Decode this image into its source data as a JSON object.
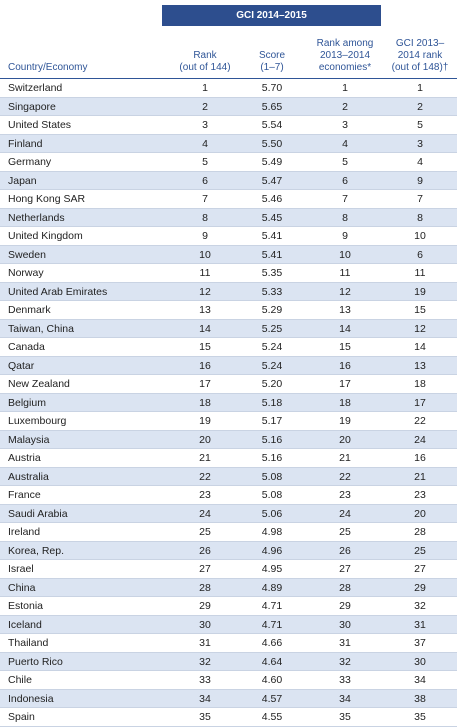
{
  "table": {
    "group_header": "GCI 2014–2015",
    "columns": [
      [
        "Country/Economy"
      ],
      [
        "Rank",
        "(out of 144)"
      ],
      [
        "Score",
        "(1–7)"
      ],
      [
        "Rank among",
        "2013–2014",
        "economies*"
      ],
      [
        "GCI 2013–",
        "2014 rank",
        "(out of 148)†"
      ]
    ],
    "rows": [
      [
        "Switzerland",
        "1",
        "5.70",
        "1",
        "1"
      ],
      [
        "Singapore",
        "2",
        "5.65",
        "2",
        "2"
      ],
      [
        "United States",
        "3",
        "5.54",
        "3",
        "5"
      ],
      [
        "Finland",
        "4",
        "5.50",
        "4",
        "3"
      ],
      [
        "Germany",
        "5",
        "5.49",
        "5",
        "4"
      ],
      [
        "Japan",
        "6",
        "5.47",
        "6",
        "9"
      ],
      [
        "Hong Kong SAR",
        "7",
        "5.46",
        "7",
        "7"
      ],
      [
        "Netherlands",
        "8",
        "5.45",
        "8",
        "8"
      ],
      [
        "United Kingdom",
        "9",
        "5.41",
        "9",
        "10"
      ],
      [
        "Sweden",
        "10",
        "5.41",
        "10",
        "6"
      ],
      [
        "Norway",
        "11",
        "5.35",
        "11",
        "11"
      ],
      [
        "United Arab Emirates",
        "12",
        "5.33",
        "12",
        "19"
      ],
      [
        "Denmark",
        "13",
        "5.29",
        "13",
        "15"
      ],
      [
        "Taiwan, China",
        "14",
        "5.25",
        "14",
        "12"
      ],
      [
        "Canada",
        "15",
        "5.24",
        "15",
        "14"
      ],
      [
        "Qatar",
        "16",
        "5.24",
        "16",
        "13"
      ],
      [
        "New Zealand",
        "17",
        "5.20",
        "17",
        "18"
      ],
      [
        "Belgium",
        "18",
        "5.18",
        "18",
        "17"
      ],
      [
        "Luxembourg",
        "19",
        "5.17",
        "19",
        "22"
      ],
      [
        "Malaysia",
        "20",
        "5.16",
        "20",
        "24"
      ],
      [
        "Austria",
        "21",
        "5.16",
        "21",
        "16"
      ],
      [
        "Australia",
        "22",
        "5.08",
        "22",
        "21"
      ],
      [
        "France",
        "23",
        "5.08",
        "23",
        "23"
      ],
      [
        "Saudi Arabia",
        "24",
        "5.06",
        "24",
        "20"
      ],
      [
        "Ireland",
        "25",
        "4.98",
        "25",
        "28"
      ],
      [
        "Korea, Rep.",
        "26",
        "4.96",
        "26",
        "25"
      ],
      [
        "Israel",
        "27",
        "4.95",
        "27",
        "27"
      ],
      [
        "China",
        "28",
        "4.89",
        "28",
        "29"
      ],
      [
        "Estonia",
        "29",
        "4.71",
        "29",
        "32"
      ],
      [
        "Iceland",
        "30",
        "4.71",
        "30",
        "31"
      ],
      [
        "Thailand",
        "31",
        "4.66",
        "31",
        "37"
      ],
      [
        "Puerto Rico",
        "32",
        "4.64",
        "32",
        "30"
      ],
      [
        "Chile",
        "33",
        "4.60",
        "33",
        "34"
      ],
      [
        "Indonesia",
        "34",
        "4.57",
        "34",
        "38"
      ],
      [
        "Spain",
        "35",
        "4.55",
        "35",
        "35"
      ]
    ]
  }
}
